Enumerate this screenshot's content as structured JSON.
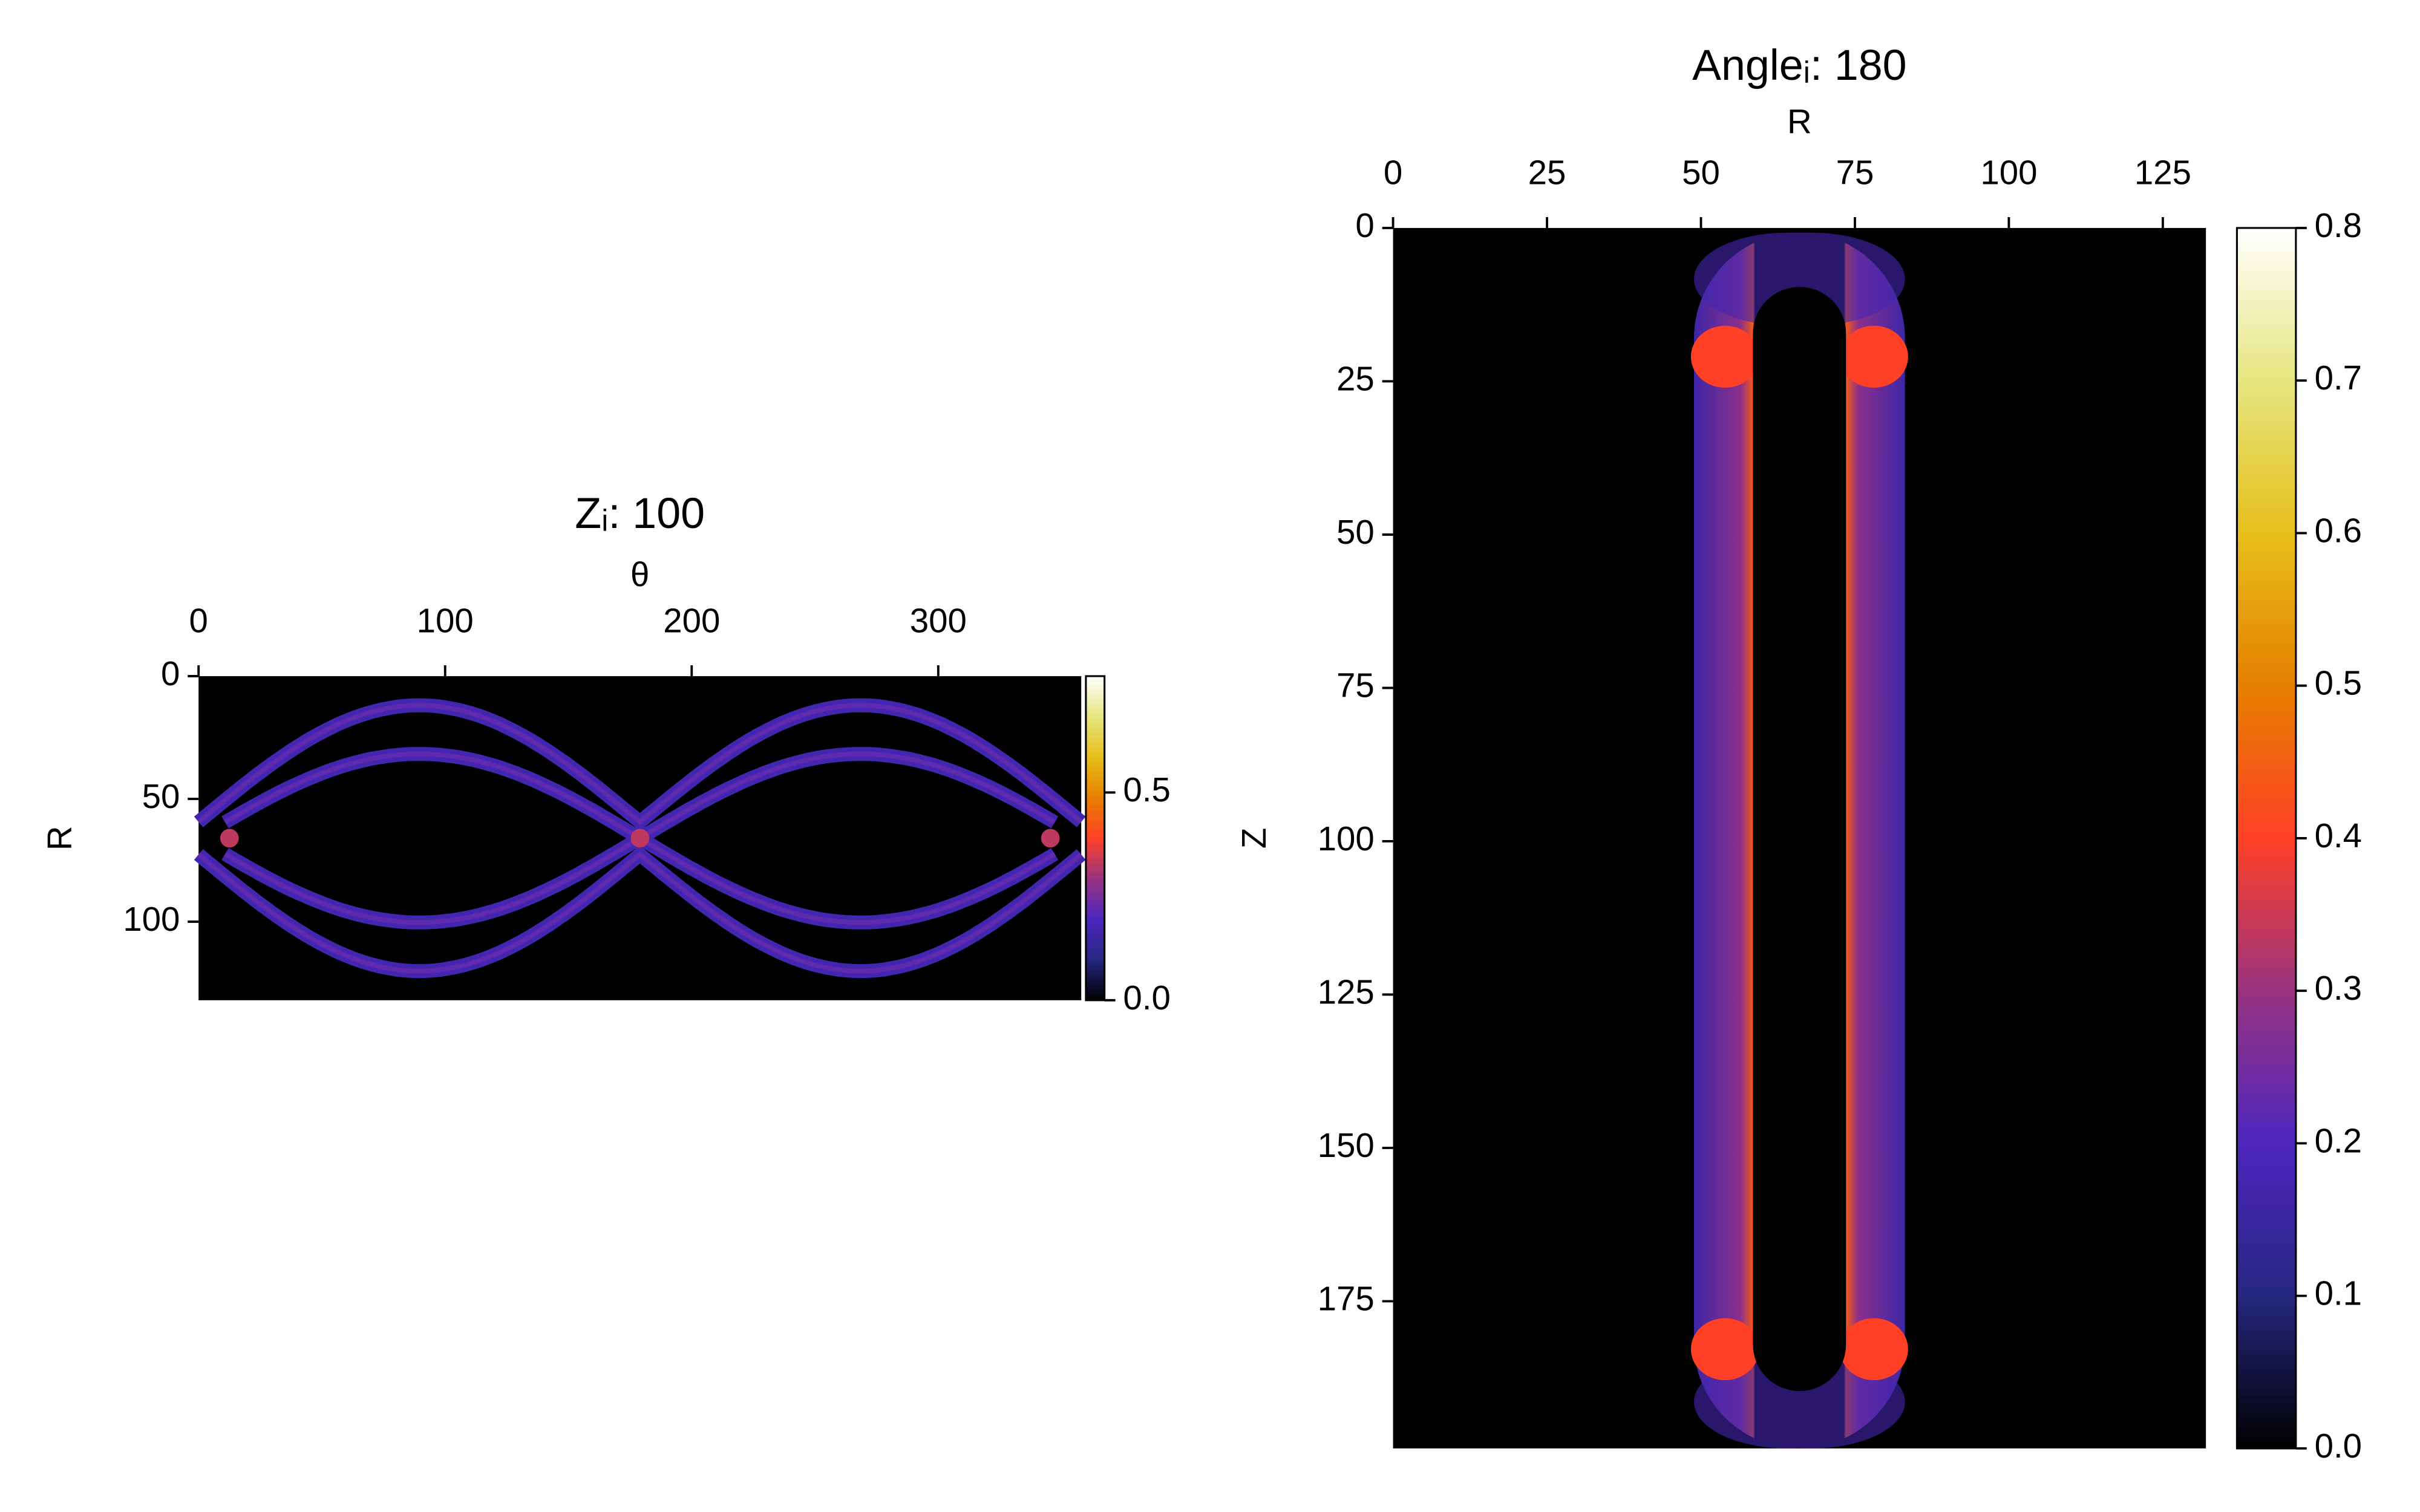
{
  "chart_data": [
    {
      "type": "heatmap",
      "title": "Zᵢ: 100",
      "x_label": "θ",
      "y_label": "R",
      "xlim": [
        0,
        358
      ],
      "xticks": [
        0,
        100,
        200,
        300
      ],
      "ylim": [
        0,
        132
      ],
      "yticks": [
        0,
        50,
        100
      ],
      "y_inverted": true,
      "x_axis_position": "top",
      "colormap": "CMRmap",
      "colorbar": {
        "lim": [
          0,
          0.78
        ],
        "ticks": [
          {
            "value": 0,
            "label": "0.0"
          },
          0.5
        ]
      }
    },
    {
      "type": "heatmap",
      "title": "Angleᵢ: 180",
      "x_label": "R",
      "y_label": "Z",
      "xlim": [
        0,
        132
      ],
      "xticks": [
        0,
        25,
        50,
        75,
        100,
        125
      ],
      "ylim": [
        0,
        199
      ],
      "yticks": [
        0,
        25,
        50,
        75,
        100,
        125,
        150,
        175
      ],
      "y_inverted": true,
      "x_axis_position": "top",
      "colormap": "CMRmap",
      "colorbar": {
        "lim": [
          0,
          0.8
        ],
        "ticks": [
          {
            "value": 0,
            "label": "0.0"
          },
          0.1,
          0.2,
          0.3,
          0.4,
          0.5,
          0.6,
          0.7,
          0.8
        ]
      }
    }
  ]
}
